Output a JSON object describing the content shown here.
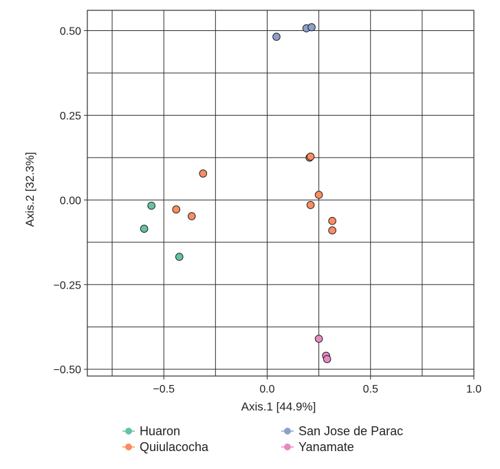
{
  "chart_data": {
    "type": "scatter",
    "xlabel": "Axis.1   [44.9%]",
    "ylabel": "Axis.2   [32.3%]",
    "xlim": [
      -0.87,
      1.0
    ],
    "ylim": [
      -0.52,
      0.56
    ],
    "x_ticks": [
      -0.5,
      0.0,
      0.5,
      1.0
    ],
    "x_tick_labels": [
      "−0.5",
      "0.0",
      "0.5",
      "1.0"
    ],
    "y_ticks": [
      0.5,
      0.25,
      0.0,
      -0.25,
      -0.5
    ],
    "y_tick_labels": [
      "0.50",
      "0.25",
      "0.00",
      "−0.25",
      "−0.50"
    ],
    "x_minor_grid": [
      -0.75,
      -0.25,
      0.25,
      0.75
    ],
    "y_minor_grid": [
      0.375,
      0.125,
      -0.125,
      -0.375
    ],
    "grid": true,
    "legend_position": "bottom",
    "series": [
      {
        "name": "Huaron",
        "color": "#66c2a5",
        "points": [
          [
            -0.56,
            -0.017
          ],
          [
            -0.595,
            -0.085
          ],
          [
            -0.425,
            -0.168
          ]
        ]
      },
      {
        "name": "Quiulacocha",
        "color": "#fc8d62",
        "points": [
          [
            -0.31,
            0.078
          ],
          [
            -0.44,
            -0.028
          ],
          [
            -0.365,
            -0.048
          ],
          [
            0.205,
            0.125
          ],
          [
            0.21,
            0.128
          ],
          [
            0.25,
            0.015
          ],
          [
            0.21,
            -0.015
          ],
          [
            0.315,
            -0.062
          ],
          [
            0.315,
            -0.09
          ]
        ]
      },
      {
        "name": "San Jose de Parac",
        "color": "#8da0cb",
        "points": [
          [
            0.045,
            0.482
          ],
          [
            0.19,
            0.507
          ],
          [
            0.215,
            0.51
          ]
        ]
      },
      {
        "name": "Yanamate",
        "color": "#e78ac3",
        "points": [
          [
            0.25,
            -0.41
          ],
          [
            0.285,
            -0.46
          ],
          [
            0.29,
            -0.47
          ]
        ]
      }
    ]
  }
}
